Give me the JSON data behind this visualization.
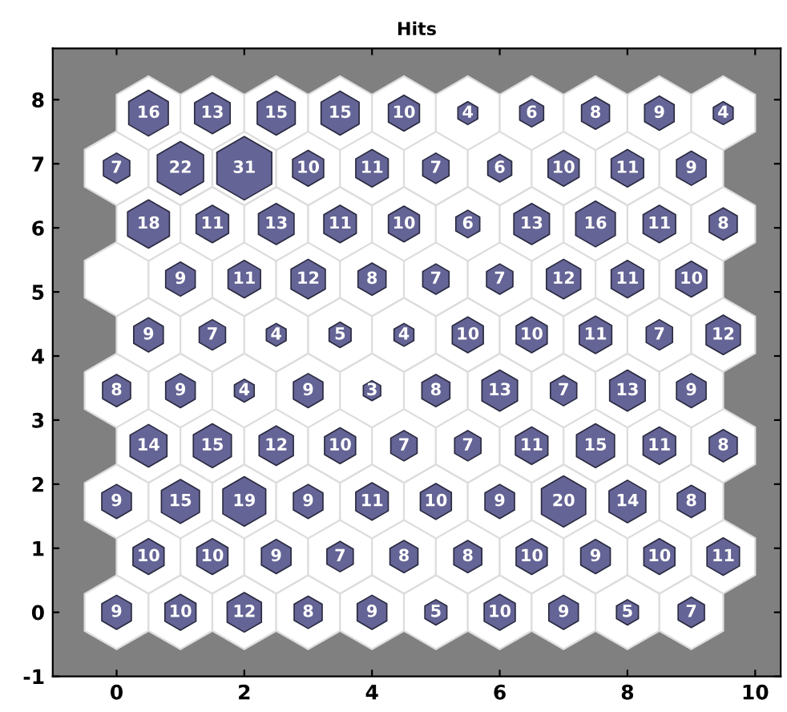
{
  "chart_data": {
    "type": "bubble",
    "title": "Hits",
    "x": [
      0,
      1,
      2,
      3,
      4,
      5,
      6,
      7,
      8,
      9,
      0.5,
      1.5,
      2.5,
      3.5,
      4.5,
      5.5,
      6.5,
      7.5,
      8.5,
      9.5,
      0,
      1,
      2,
      3,
      4,
      5,
      6,
      7,
      8,
      9,
      0.5,
      1.5,
      2.5,
      3.5,
      4.5,
      5.5,
      6.5,
      7.5,
      8.5,
      9.5,
      0,
      1,
      2,
      3,
      4,
      5,
      6,
      7,
      8,
      9,
      0.5,
      1.5,
      2.5,
      3.5,
      4.5,
      5.5,
      6.5,
      7.5,
      8.5,
      9.5,
      1,
      2,
      3,
      4,
      5,
      6,
      7,
      8,
      9,
      0.5,
      1.5,
      2.5,
      3.5,
      4.5,
      5.5,
      6.5,
      7.5,
      8.5,
      9.5,
      0,
      1,
      2,
      3,
      4,
      5,
      6,
      7,
      8,
      9,
      0.5,
      1.5,
      2.5,
      3.5,
      4.5,
      5.5,
      6.5,
      7.5,
      8.5,
      9.5
    ],
    "values": [
      0,
      0,
      0,
      0,
      0,
      0,
      0,
      0,
      0,
      0,
      0.87,
      0.87,
      0.87,
      0.87,
      0.87,
      0.87,
      0.87,
      0.87,
      0.87,
      0.87,
      1.73,
      1.73,
      1.73,
      1.73,
      1.73,
      1.73,
      1.73,
      1.73,
      1.73,
      1.73,
      2.6,
      2.6,
      2.6,
      2.6,
      2.6,
      2.6,
      2.6,
      2.6,
      2.6,
      2.6,
      3.46,
      3.46,
      3.46,
      3.46,
      3.46,
      3.46,
      3.46,
      3.46,
      3.46,
      3.46,
      4.33,
      4.33,
      4.33,
      4.33,
      4.33,
      4.33,
      4.33,
      4.33,
      4.33,
      4.33,
      5.2,
      5.2,
      5.2,
      5.2,
      5.2,
      5.2,
      5.2,
      5.2,
      5.2,
      6.06,
      6.06,
      6.06,
      6.06,
      6.06,
      6.06,
      6.06,
      6.06,
      6.06,
      6.06,
      6.93,
      6.93,
      6.93,
      6.93,
      6.93,
      6.93,
      6.93,
      6.93,
      6.93,
      6.93,
      7.79,
      7.79,
      7.79,
      7.79,
      7.79,
      7.79,
      7.79,
      7.79,
      7.79,
      7.79
    ],
    "sizes": [
      0.29,
      0.32,
      0.39,
      0.26,
      0.29,
      0.16,
      0.32,
      0.29,
      0.16,
      0.23,
      0.32,
      0.32,
      0.29,
      0.23,
      0.26,
      0.26,
      0.32,
      0.29,
      0.32,
      0.35,
      0.29,
      0.48,
      0.61,
      0.29,
      0.35,
      0.32,
      0.29,
      0.65,
      0.45,
      0.26,
      0.45,
      0.48,
      0.39,
      0.32,
      0.23,
      0.23,
      0.35,
      0.48,
      0.35,
      0.26,
      0.26,
      0.29,
      0.13,
      0.29,
      0.1,
      0.26,
      0.42,
      0.23,
      0.42,
      0.29,
      0.29,
      0.23,
      0.13,
      0.16,
      0.13,
      0.32,
      0.32,
      0.35,
      0.23,
      0.39,
      0.29,
      0.35,
      0.39,
      0.26,
      0.23,
      0.23,
      0.39,
      0.35,
      0.32,
      0.58,
      0.35,
      0.42,
      0.35,
      0.32,
      0.19,
      0.42,
      0.52,
      0.35,
      0.26,
      0.23,
      0.71,
      1,
      0.32,
      0.35,
      0.23,
      0.19,
      0.32,
      0.35,
      0.29,
      0.52,
      0.42,
      0.48,
      0.48,
      0.32,
      0.13,
      0.19,
      0.26,
      0.29,
      0.13
    ],
    "annotations": [
      {
        "text": "9",
        "x": 0,
        "y": 0
      },
      {
        "text": "10",
        "x": 1,
        "y": 0
      },
      {
        "text": "12",
        "x": 2,
        "y": 0
      },
      {
        "text": "8",
        "x": 3,
        "y": 0
      },
      {
        "text": "9",
        "x": 4,
        "y": 0
      },
      {
        "text": "5",
        "x": 5,
        "y": 0
      },
      {
        "text": "10",
        "x": 6,
        "y": 0
      },
      {
        "text": "9",
        "x": 7,
        "y": 0
      },
      {
        "text": "5",
        "x": 8,
        "y": 0
      },
      {
        "text": "7",
        "x": 9,
        "y": 0
      },
      {
        "text": "10",
        "x": 0.5,
        "y": 0.87
      },
      {
        "text": "10",
        "x": 1.5,
        "y": 0.87
      },
      {
        "text": "9",
        "x": 2.5,
        "y": 0.87
      },
      {
        "text": "7",
        "x": 3.5,
        "y": 0.87
      },
      {
        "text": "8",
        "x": 4.5,
        "y": 0.87
      },
      {
        "text": "8",
        "x": 5.5,
        "y": 0.87
      },
      {
        "text": "10",
        "x": 6.5,
        "y": 0.87
      },
      {
        "text": "9",
        "x": 7.5,
        "y": 0.87
      },
      {
        "text": "10",
        "x": 8.5,
        "y": 0.87
      },
      {
        "text": "11",
        "x": 9.5,
        "y": 0.87
      },
      {
        "text": "9",
        "x": 0,
        "y": 1.73
      },
      {
        "text": "15",
        "x": 1,
        "y": 1.73
      },
      {
        "text": "19",
        "x": 2,
        "y": 1.73
      },
      {
        "text": "9",
        "x": 3,
        "y": 1.73
      },
      {
        "text": "11",
        "x": 4,
        "y": 1.73
      },
      {
        "text": "10",
        "x": 5,
        "y": 1.73
      },
      {
        "text": "9",
        "x": 6,
        "y": 1.73
      },
      {
        "text": "20",
        "x": 7,
        "y": 1.73
      },
      {
        "text": "14",
        "x": 8,
        "y": 1.73
      },
      {
        "text": "8",
        "x": 9,
        "y": 1.73
      },
      {
        "text": "14",
        "x": 0.5,
        "y": 2.6
      },
      {
        "text": "15",
        "x": 1.5,
        "y": 2.6
      },
      {
        "text": "12",
        "x": 2.5,
        "y": 2.6
      },
      {
        "text": "10",
        "x": 3.5,
        "y": 2.6
      },
      {
        "text": "7",
        "x": 4.5,
        "y": 2.6
      },
      {
        "text": "7",
        "x": 5.5,
        "y": 2.6
      },
      {
        "text": "11",
        "x": 6.5,
        "y": 2.6
      },
      {
        "text": "15",
        "x": 7.5,
        "y": 2.6
      },
      {
        "text": "11",
        "x": 8.5,
        "y": 2.6
      },
      {
        "text": "8",
        "x": 9.5,
        "y": 2.6
      },
      {
        "text": "8",
        "x": 0,
        "y": 3.46
      },
      {
        "text": "9",
        "x": 1,
        "y": 3.46
      },
      {
        "text": "4",
        "x": 2,
        "y": 3.46
      },
      {
        "text": "9",
        "x": 3,
        "y": 3.46
      },
      {
        "text": "3",
        "x": 4,
        "y": 3.46
      },
      {
        "text": "8",
        "x": 5,
        "y": 3.46
      },
      {
        "text": "13",
        "x": 6,
        "y": 3.46
      },
      {
        "text": "7",
        "x": 7,
        "y": 3.46
      },
      {
        "text": "13",
        "x": 8,
        "y": 3.46
      },
      {
        "text": "9",
        "x": 9,
        "y": 3.46
      },
      {
        "text": "9",
        "x": 0.5,
        "y": 4.33
      },
      {
        "text": "7",
        "x": 1.5,
        "y": 4.33
      },
      {
        "text": "4",
        "x": 2.5,
        "y": 4.33
      },
      {
        "text": "5",
        "x": 3.5,
        "y": 4.33
      },
      {
        "text": "4",
        "x": 4.5,
        "y": 4.33
      },
      {
        "text": "10",
        "x": 5.5,
        "y": 4.33
      },
      {
        "text": "10",
        "x": 6.5,
        "y": 4.33
      },
      {
        "text": "11",
        "x": 7.5,
        "y": 4.33
      },
      {
        "text": "7",
        "x": 8.5,
        "y": 4.33
      },
      {
        "text": "12",
        "x": 9.5,
        "y": 4.33
      },
      {
        "text": "9",
        "x": 1,
        "y": 5.2
      },
      {
        "text": "11",
        "x": 2,
        "y": 5.2
      },
      {
        "text": "12",
        "x": 3,
        "y": 5.2
      },
      {
        "text": "8",
        "x": 4,
        "y": 5.2
      },
      {
        "text": "7",
        "x": 5,
        "y": 5.2
      },
      {
        "text": "7",
        "x": 6,
        "y": 5.2
      },
      {
        "text": "12",
        "x": 7,
        "y": 5.2
      },
      {
        "text": "11",
        "x": 8,
        "y": 5.2
      },
      {
        "text": "10",
        "x": 9,
        "y": 5.2
      },
      {
        "text": "18",
        "x": 0.5,
        "y": 6.06
      },
      {
        "text": "11",
        "x": 1.5,
        "y": 6.06
      },
      {
        "text": "13",
        "x": 2.5,
        "y": 6.06
      },
      {
        "text": "11",
        "x": 3.5,
        "y": 6.06
      },
      {
        "text": "10",
        "x": 4.5,
        "y": 6.06
      },
      {
        "text": "6",
        "x": 5.5,
        "y": 6.06
      },
      {
        "text": "13",
        "x": 6.5,
        "y": 6.06
      },
      {
        "text": "16",
        "x": 7.5,
        "y": 6.06
      },
      {
        "text": "11",
        "x": 8.5,
        "y": 6.06
      },
      {
        "text": "8",
        "x": 9.5,
        "y": 6.06
      },
      {
        "text": "7",
        "x": 0,
        "y": 6.93
      },
      {
        "text": "22",
        "x": 1,
        "y": 6.93
      },
      {
        "text": "31",
        "x": 2,
        "y": 6.93
      },
      {
        "text": "10",
        "x": 3,
        "y": 6.93
      },
      {
        "text": "11",
        "x": 4,
        "y": 6.93
      },
      {
        "text": "7",
        "x": 5,
        "y": 6.93
      },
      {
        "text": "6",
        "x": 6,
        "y": 6.93
      },
      {
        "text": "10",
        "x": 7,
        "y": 6.93
      },
      {
        "text": "11",
        "x": 8,
        "y": 6.93
      },
      {
        "text": "9",
        "x": 9,
        "y": 6.93
      },
      {
        "text": "16",
        "x": 0.5,
        "y": 7.79
      },
      {
        "text": "13",
        "x": 1.5,
        "y": 7.79
      },
      {
        "text": "15",
        "x": 2.5,
        "y": 7.79
      },
      {
        "text": "15",
        "x": 3.5,
        "y": 7.79
      },
      {
        "text": "10",
        "x": 4.5,
        "y": 7.79
      },
      {
        "text": "4",
        "x": 5.5,
        "y": 7.79
      },
      {
        "text": "6",
        "x": 6.5,
        "y": 7.79
      },
      {
        "text": "8",
        "x": 7.5,
        "y": 7.79
      },
      {
        "text": "9",
        "x": 8.5,
        "y": 7.79
      },
      {
        "text": "4",
        "x": 9.5,
        "y": 7.79
      }
    ],
    "color": "#646496",
    "xlim": [
      -1,
      10.4
    ],
    "ylim": [
      -1,
      8.8
    ],
    "xticks": [
      0,
      2,
      4,
      6,
      8,
      10
    ],
    "yticks": [
      -1,
      0,
      1,
      2,
      3,
      4,
      5,
      6,
      7,
      8
    ]
  }
}
